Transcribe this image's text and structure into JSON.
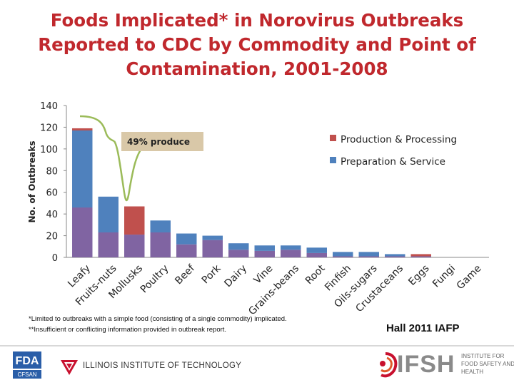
{
  "title": {
    "line1": "Foods Implicated* in Norovirus Outbreaks",
    "line2": "Reported to CDC by Commodity and Point of",
    "line3": "Contamination, 2001-2008"
  },
  "chart_data": {
    "type": "bar",
    "stacked": true,
    "categories": [
      "Leafy",
      "Fruits-nuts",
      "Mollusks",
      "Poultry",
      "Beef",
      "Pork",
      "Dairy",
      "Vine",
      "Grains-beans",
      "Root",
      "Finfish",
      "Oils-sugars",
      "Crustaceans",
      "Eggs",
      "Fungi",
      "Game"
    ],
    "series": [
      {
        "name": "",
        "color": "#8064a2",
        "values": [
          46,
          23,
          21,
          23,
          12,
          16,
          7,
          6,
          7,
          4,
          1,
          1,
          1,
          1,
          0,
          0
        ]
      },
      {
        "name": "Preparation & Service",
        "color": "#4f81bd",
        "values": [
          71,
          33,
          0,
          11,
          10,
          4,
          6,
          5,
          4,
          5,
          4,
          4,
          2,
          0,
          0,
          0
        ]
      },
      {
        "name": "Production & Processing",
        "color": "#c0504d",
        "values": [
          2,
          0,
          26,
          0,
          0,
          0,
          0,
          0,
          0,
          0,
          0,
          0,
          0,
          2,
          0,
          0
        ]
      }
    ],
    "legend": [
      "Production & Processing",
      "Preparation & Service"
    ],
    "ylabel": "No. of Outbreaks",
    "ylim": [
      0,
      140
    ],
    "yticks": [
      0,
      20,
      40,
      60,
      80,
      100,
      120,
      140
    ],
    "annotation": "49% produce",
    "grid": false,
    "legend_position": "top-right"
  },
  "footnotes": {
    "line1": "*Limited to outbreaks with a simple food (consisting of a single commodity) implicated.",
    "line2": "**Insufficient or conflicting information provided in outbreak report."
  },
  "citation": "Hall 2011 IAFP",
  "logos": {
    "fda": "FDA",
    "cfsan": "CFSAN",
    "iit": "ILLINOIS INSTITUTE OF TECHNOLOGY",
    "ifsh": "IFSH",
    "ifsh_tagline": "INSTITUTE FOR FOOD SAFETY AND HEALTH"
  },
  "colors": {
    "title": "#c0282d",
    "annotation_fill": "#d9c8a8",
    "callout_stroke": "#9bbb59"
  }
}
